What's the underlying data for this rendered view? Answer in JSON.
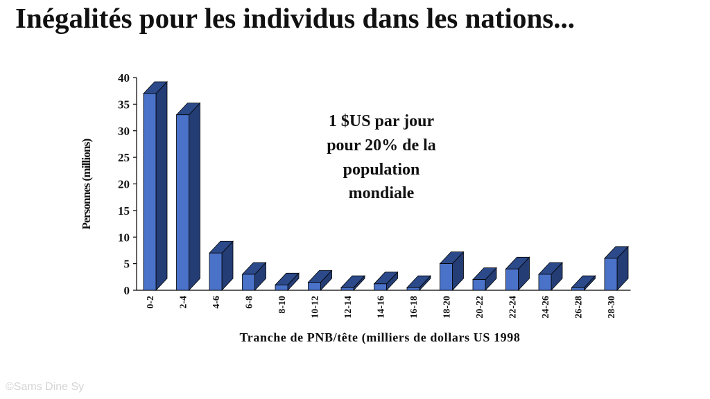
{
  "slide": {
    "title": "Inégalités pour les individus dans les nations...",
    "annotation_lines": [
      "1 $US  par jour",
      "pour 20% de la",
      "population",
      "mondiale"
    ],
    "watermark": "©Sams Dine Sy"
  },
  "chart_data": {
    "type": "bar",
    "style": "3d",
    "title": "",
    "xlabel": "Tranche de PNB/tête (milliers de dollars US 1998",
    "ylabel": "Personnes (millions)",
    "categories": [
      "0-2",
      "2-4",
      "4-6",
      "6-8",
      "8-10",
      "10-12",
      "12-14",
      "14-16",
      "16-18",
      "18-20",
      "20-22",
      "22-24",
      "24-26",
      "26-28",
      "28-30"
    ],
    "values": [
      37,
      33,
      7,
      3,
      1,
      1.5,
      0.5,
      1.2,
      0.5,
      5,
      2,
      4,
      3,
      0.5,
      6
    ],
    "ylim": [
      0,
      40
    ],
    "yticks": [
      0,
      5,
      10,
      15,
      20,
      25,
      30,
      35,
      40
    ],
    "grid": false,
    "legend": "none",
    "colors": {
      "bar_front": "#4a72c8",
      "bar_side": "#243d75",
      "bar_top": "#2c4a8a",
      "outline": "#000000",
      "axis": "#000000"
    }
  }
}
